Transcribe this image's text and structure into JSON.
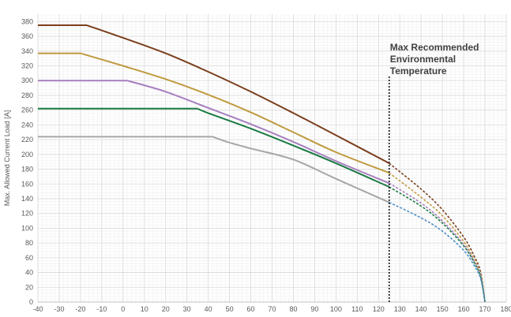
{
  "chart_data": {
    "type": "line",
    "title": "",
    "xlabel": "",
    "ylabel": "Max. Allowed Current Load [A]",
    "xlim": [
      -40,
      180
    ],
    "ylim": [
      0,
      390
    ],
    "x_ticks": [
      -40,
      -30,
      -20,
      -10,
      0,
      10,
      20,
      30,
      40,
      50,
      60,
      70,
      80,
      90,
      100,
      110,
      120,
      130,
      140,
      150,
      160,
      170,
      180
    ],
    "y_ticks": [
      0,
      20,
      40,
      60,
      80,
      100,
      120,
      140,
      160,
      180,
      200,
      220,
      240,
      260,
      280,
      300,
      320,
      340,
      360,
      380
    ],
    "grid": true,
    "marker_line": {
      "x": 125,
      "label_lines": [
        "Max Recommended",
        "Environmental",
        "Temperature"
      ]
    },
    "series": [
      {
        "color": "#7b3f1d",
        "dashed_color": "#7b3f1d",
        "solid": [
          [
            -40,
            375
          ],
          [
            -17,
            375
          ],
          [
            0,
            358
          ],
          [
            20,
            337
          ],
          [
            40,
            312
          ],
          [
            60,
            285
          ],
          [
            80,
            256
          ],
          [
            100,
            226
          ],
          [
            125,
            188
          ]
        ],
        "dashed": [
          [
            125,
            188
          ],
          [
            140,
            153
          ],
          [
            150,
            125
          ],
          [
            160,
            88
          ],
          [
            165,
            62
          ],
          [
            168,
            40
          ],
          [
            170,
            0
          ]
        ]
      },
      {
        "color": "#bf9a3f",
        "dashed_color": "#bf9a3f",
        "solid": [
          [
            -40,
            337
          ],
          [
            -20,
            337
          ],
          [
            0,
            320
          ],
          [
            20,
            302
          ],
          [
            40,
            281
          ],
          [
            60,
            257
          ],
          [
            80,
            230
          ],
          [
            100,
            203
          ],
          [
            125,
            175
          ]
        ],
        "dashed": [
          [
            125,
            175
          ],
          [
            140,
            142
          ],
          [
            150,
            117
          ],
          [
            160,
            82
          ],
          [
            165,
            57
          ],
          [
            168,
            37
          ],
          [
            170,
            0
          ]
        ]
      },
      {
        "color": "#a67fbf",
        "dashed_color": "#a67fbf",
        "solid": [
          [
            -40,
            300
          ],
          [
            2,
            300
          ],
          [
            20,
            285
          ],
          [
            40,
            263
          ],
          [
            60,
            241
          ],
          [
            80,
            217
          ],
          [
            100,
            191
          ],
          [
            125,
            161
          ]
        ],
        "dashed": [
          [
            125,
            161
          ],
          [
            140,
            134
          ],
          [
            150,
            110
          ],
          [
            160,
            78
          ],
          [
            165,
            55
          ],
          [
            168,
            35
          ],
          [
            170,
            0
          ]
        ]
      },
      {
        "color": "#1a7a44",
        "dashed_color": "#1a7a44",
        "solid": [
          [
            -40,
            262
          ],
          [
            35,
            262
          ],
          [
            40,
            256
          ],
          [
            60,
            235
          ],
          [
            80,
            212
          ],
          [
            100,
            188
          ],
          [
            125,
            156
          ]
        ],
        "dashed": [
          [
            125,
            156
          ],
          [
            140,
            130
          ],
          [
            150,
            107
          ],
          [
            160,
            76
          ],
          [
            165,
            53
          ],
          [
            168,
            34
          ],
          [
            170,
            0
          ]
        ]
      },
      {
        "color": "#a6a6a6",
        "dashed_color": "#4b8dc9",
        "solid": [
          [
            -40,
            224
          ],
          [
            42,
            224
          ],
          [
            50,
            216
          ],
          [
            60,
            208
          ],
          [
            80,
            193
          ],
          [
            100,
            167
          ],
          [
            125,
            135
          ]
        ],
        "dashed": [
          [
            125,
            135
          ],
          [
            140,
            114
          ],
          [
            150,
            96
          ],
          [
            160,
            70
          ],
          [
            165,
            49
          ],
          [
            168,
            31
          ],
          [
            170,
            0
          ]
        ]
      }
    ]
  }
}
